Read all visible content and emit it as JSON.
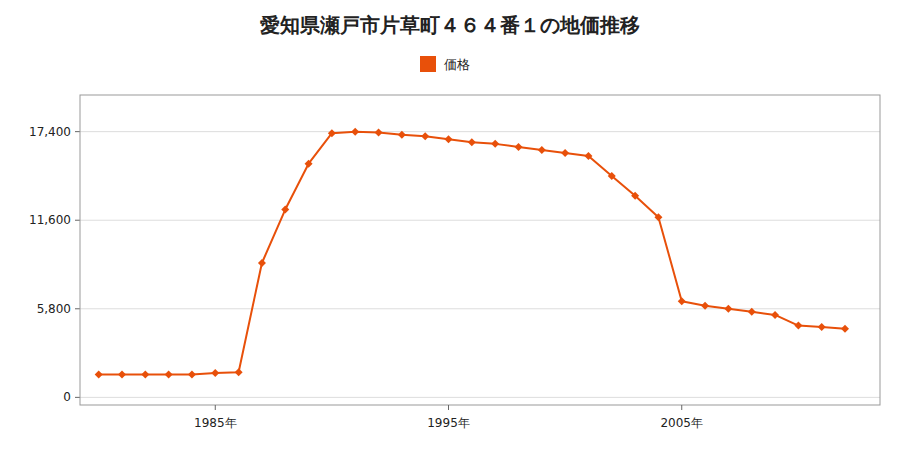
{
  "chart_data": {
    "type": "line",
    "title": "愛知県瀬戸市片草町４６４番１の地価推移",
    "x": [
      1980,
      1981,
      1982,
      1983,
      1984,
      1985,
      1986,
      1987,
      1988,
      1989,
      1990,
      1991,
      1992,
      1993,
      1994,
      1995,
      1996,
      1997,
      1998,
      1999,
      2000,
      2001,
      2002,
      2003,
      2004,
      2005,
      2006,
      2007,
      2008,
      2009,
      2010,
      2011,
      2012
    ],
    "series": [
      {
        "name": "価格",
        "color": "#e8500a",
        "marker": "diamond",
        "values": [
          1500,
          1500,
          1500,
          1500,
          1500,
          1600,
          1650,
          8800,
          12300,
          15300,
          17300,
          17400,
          17350,
          17200,
          17100,
          16900,
          16700,
          16600,
          16400,
          16200,
          16000,
          15800,
          14500,
          13200,
          11800,
          6300,
          6000,
          5800,
          5600,
          5400,
          4700,
          4600,
          4500
        ]
      }
    ],
    "xlim": [
      1979.2,
      2013.5
    ],
    "xticks": [
      {
        "value": 1985,
        "label": "1985年"
      },
      {
        "value": 1995,
        "label": "1995年"
      },
      {
        "value": 2005,
        "label": "2005年"
      }
    ],
    "ylim": [
      -500,
      19800
    ],
    "yticks": [
      0,
      {
        "value": 5800,
        "label": "5,800"
      },
      {
        "value": 11600,
        "label": "11,600"
      },
      {
        "value": 17400,
        "label": "17,400"
      }
    ],
    "grid": true,
    "legend": "top"
  }
}
